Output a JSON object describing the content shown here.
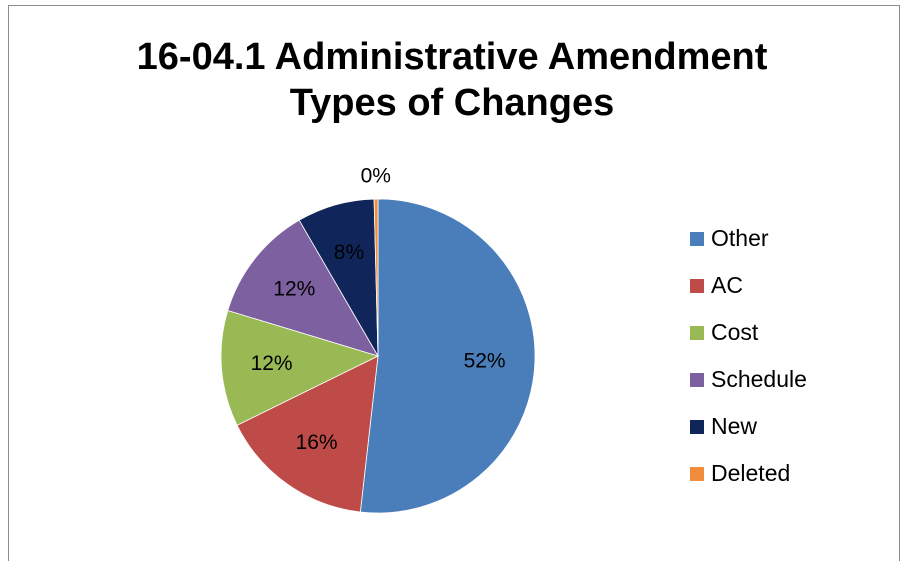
{
  "chart_data": {
    "type": "pie",
    "title_lines": [
      "16-04.1 Administrative Amendment",
      "Types of Changes"
    ],
    "slices": [
      {
        "name": "Other",
        "value": 52,
        "label": "52%",
        "color": "#4a7ebb"
      },
      {
        "name": "AC",
        "value": 16,
        "label": "16%",
        "color": "#be4b48"
      },
      {
        "name": "Cost",
        "value": 12,
        "label": "12%",
        "color": "#98b954"
      },
      {
        "name": "Schedule",
        "value": 12,
        "label": "12%",
        "color": "#7d60a0"
      },
      {
        "name": "New",
        "value": 8,
        "label": "8%",
        "color": "#10255a"
      },
      {
        "name": "Deleted",
        "value": 0.4,
        "label": "0%",
        "color": "#f08c3c"
      }
    ],
    "legend_position": "right",
    "start_angle_deg": 0,
    "direction": "clockwise"
  }
}
